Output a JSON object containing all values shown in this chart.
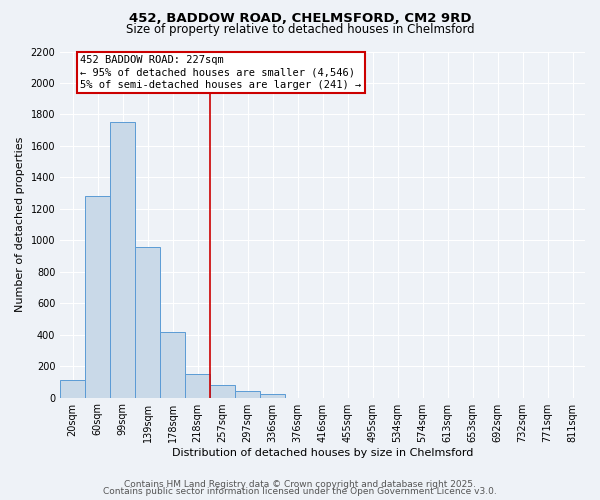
{
  "title": "452, BADDOW ROAD, CHELMSFORD, CM2 9RD",
  "subtitle": "Size of property relative to detached houses in Chelmsford",
  "xlabel": "Distribution of detached houses by size in Chelmsford",
  "ylabel": "Number of detached properties",
  "bar_labels": [
    "20sqm",
    "60sqm",
    "99sqm",
    "139sqm",
    "178sqm",
    "218sqm",
    "257sqm",
    "297sqm",
    "336sqm",
    "376sqm",
    "416sqm",
    "455sqm",
    "495sqm",
    "534sqm",
    "574sqm",
    "613sqm",
    "653sqm",
    "692sqm",
    "732sqm",
    "771sqm",
    "811sqm"
  ],
  "bar_values": [
    110,
    1280,
    1750,
    960,
    420,
    150,
    80,
    40,
    20,
    0,
    0,
    0,
    0,
    0,
    0,
    0,
    0,
    0,
    0,
    0,
    0
  ],
  "bar_color": "#c9d9e8",
  "bar_edgecolor": "#5b9bd5",
  "vline_x": 5.5,
  "vline_color": "#cc0000",
  "annotation_line1": "452 BADDOW ROAD: 227sqm",
  "annotation_line2": "← 95% of detached houses are smaller (4,546)",
  "annotation_line3": "5% of semi-detached houses are larger (241) →",
  "annotation_box_color": "#cc0000",
  "ylim": [
    0,
    2200
  ],
  "yticks": [
    0,
    200,
    400,
    600,
    800,
    1000,
    1200,
    1400,
    1600,
    1800,
    2000,
    2200
  ],
  "footnote1": "Contains HM Land Registry data © Crown copyright and database right 2025.",
  "footnote2": "Contains public sector information licensed under the Open Government Licence v3.0.",
  "bg_color": "#eef2f7",
  "grid_color": "#ffffff",
  "title_fontsize": 9.5,
  "subtitle_fontsize": 8.5,
  "axis_label_fontsize": 8,
  "tick_fontsize": 7,
  "annotation_fontsize": 7.5,
  "footnote_fontsize": 6.5
}
